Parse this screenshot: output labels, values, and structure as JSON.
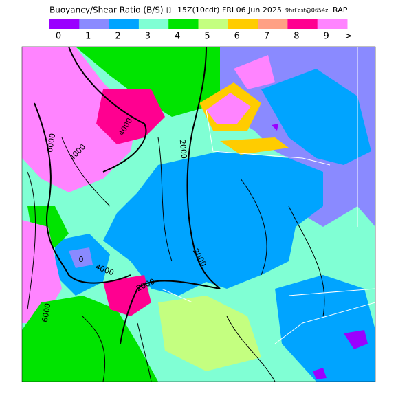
{
  "header": {
    "title": "Buoyancy/Shear Ratio (B/S)",
    "units": "[]",
    "valid": "15Z(10cdt) FRI 06 Jun 2025",
    "forecast": "9hrFcst@0654z",
    "model": "RAP"
  },
  "colorbar": [
    {
      "label": "0",
      "color": "#9a00ff"
    },
    {
      "label": "1",
      "color": "#8a8aff"
    },
    {
      "label": "2",
      "color": "#00a4ff"
    },
    {
      "label": "3",
      "color": "#80ffd4"
    },
    {
      "label": "4",
      "color": "#00e400"
    },
    {
      "label": "5",
      "color": "#c4ff80"
    },
    {
      "label": "6",
      "color": "#ffcc00"
    },
    {
      "label": "7",
      "color": "#ffa084"
    },
    {
      "label": "8",
      "color": "#ff0090"
    },
    {
      "label": "9",
      "color": "#ff84ff"
    }
  ],
  "colorbar_overflow": ">",
  "contour_labels": [
    "4000",
    "4000",
    "6000",
    "2000",
    "2000",
    "4000",
    "2000",
    "0",
    "6000"
  ]
}
